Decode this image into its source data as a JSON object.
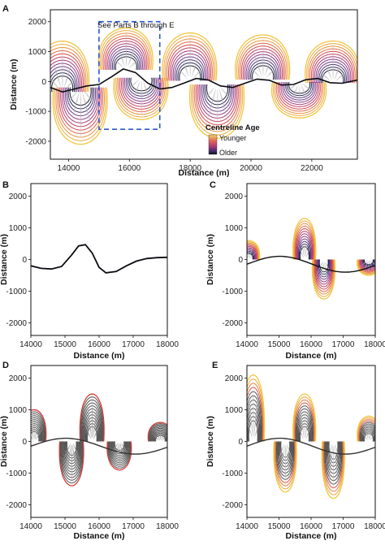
{
  "legend": {
    "title": "Centreline Age",
    "younger": "Younger",
    "older": "Older",
    "colors": [
      "#f2c640",
      "#e8913b",
      "#d6474c",
      "#a83a78",
      "#6e3b8e",
      "#2c2a55",
      "#0c0c14"
    ]
  },
  "annotation": {
    "text": "See Parts B through E"
  },
  "chart_data": [
    {
      "panel": "A",
      "type": "line",
      "xlabel": "Distance (m)",
      "ylabel": "Distance (m)",
      "xlim": [
        13400,
        23500
      ],
      "ylim": [
        -2600,
        2400
      ],
      "xticks": [
        14000,
        16000,
        18000,
        20000,
        22000
      ],
      "yticks": [
        2000,
        1000,
        0,
        -1000,
        -2000
      ],
      "series": [
        {
          "values": "oldest centreline (black)",
          "x": [
            13400,
            13800,
            14200,
            14600,
            15000,
            15400,
            15800,
            16200,
            16600,
            17000,
            17400,
            17800,
            18200,
            18600,
            19000,
            19400,
            19800,
            20200,
            20600,
            21000,
            21400,
            21800,
            22200,
            22600,
            23000,
            23500
          ],
          "y": [
            -200,
            -350,
            -250,
            -150,
            -100,
            150,
            420,
            300,
            -50,
            -250,
            -200,
            -50,
            100,
            50,
            -150,
            -200,
            -60,
            80,
            40,
            -120,
            -100,
            60,
            100,
            -40,
            -60,
            50
          ]
        }
      ],
      "loops": [
        {
          "x": 13800,
          "side": 1,
          "extent": 1700
        },
        {
          "x": 14400,
          "side": -1,
          "extent": 1900
        },
        {
          "x": 15900,
          "side": 1,
          "extent": 1400
        },
        {
          "x": 16400,
          "side": -1,
          "extent": 1400
        },
        {
          "x": 18000,
          "side": 1,
          "extent": 1600
        },
        {
          "x": 18900,
          "side": -1,
          "extent": 1800
        },
        {
          "x": 20400,
          "side": 1,
          "extent": 1500
        },
        {
          "x": 21600,
          "side": -1,
          "extent": 1200
        },
        {
          "x": 22700,
          "side": 1,
          "extent": 1400
        }
      ],
      "highlight_box": {
        "x": [
          15000,
          17000
        ],
        "y": [
          -1600,
          2000
        ]
      }
    },
    {
      "panel": "B",
      "type": "line",
      "xlabel": "Distance (m)",
      "ylabel": "Distance (m)",
      "xlim": [
        14000,
        18000
      ],
      "ylim": [
        -2400,
        2400
      ],
      "xticks": [
        14000,
        15000,
        16000,
        17000,
        18000
      ],
      "yticks": [
        2000,
        1000,
        0,
        -1000,
        -2000
      ],
      "series": [
        {
          "values": "initial centreline",
          "x": [
            14000,
            14300,
            14600,
            14900,
            15200,
            15400,
            15600,
            15800,
            16000,
            16200,
            16500,
            16800,
            17100,
            17400,
            17700,
            18000
          ],
          "y": [
            -200,
            -280,
            -300,
            -220,
            150,
            430,
            470,
            200,
            -250,
            -420,
            -380,
            -200,
            -50,
            30,
            60,
            70
          ]
        }
      ]
    },
    {
      "panel": "C",
      "type": "line",
      "xlabel": "Distance (m)",
      "ylabel": "Distance (m)",
      "xlim": [
        14000,
        18000
      ],
      "ylim": [
        -2400,
        2400
      ],
      "xticks": [
        14000,
        15000,
        16000,
        17000,
        18000
      ],
      "yticks": [
        2000,
        1000,
        0,
        -1000,
        -2000
      ],
      "loops": [
        {
          "x": 15800,
          "side": 1,
          "extent": 1300
        },
        {
          "x": 16400,
          "side": -1,
          "extent": 1250
        },
        {
          "x": 14050,
          "side": 1,
          "extent": 600
        },
        {
          "x": 17800,
          "side": -1,
          "extent": 500
        }
      ]
    },
    {
      "panel": "D",
      "type": "line",
      "xlabel": "Distance (m)",
      "ylabel": "Distance (m)",
      "xlim": [
        14000,
        18000
      ],
      "ylim": [
        -2400,
        2400
      ],
      "xticks": [
        14000,
        15000,
        16000,
        17000,
        18000
      ],
      "yticks": [
        2000,
        1000,
        0,
        -1000,
        -2000
      ],
      "loops": [
        {
          "x": 15800,
          "side": 1,
          "extent": 1500
        },
        {
          "x": 15200,
          "side": -1,
          "extent": 1400
        },
        {
          "x": 16600,
          "side": -1,
          "extent": 900
        },
        {
          "x": 14100,
          "side": 1,
          "extent": 1000
        },
        {
          "x": 17800,
          "side": 1,
          "extent": 600
        }
      ]
    },
    {
      "panel": "E",
      "type": "line",
      "xlabel": "Distance (m)",
      "ylabel": "Distance (m)",
      "xlim": [
        14000,
        18000
      ],
      "ylim": [
        -2400,
        2400
      ],
      "xticks": [
        14000,
        15000,
        16000,
        17000,
        18000
      ],
      "yticks": [
        2000,
        1000,
        0,
        -1000,
        -2000
      ],
      "loops": [
        {
          "x": 15800,
          "side": 1,
          "extent": 1500
        },
        {
          "x": 15200,
          "side": -1,
          "extent": 1600
        },
        {
          "x": 16700,
          "side": -1,
          "extent": 1800
        },
        {
          "x": 14200,
          "side": 1,
          "extent": 2100
        },
        {
          "x": 17800,
          "side": 1,
          "extent": 800
        }
      ]
    }
  ]
}
